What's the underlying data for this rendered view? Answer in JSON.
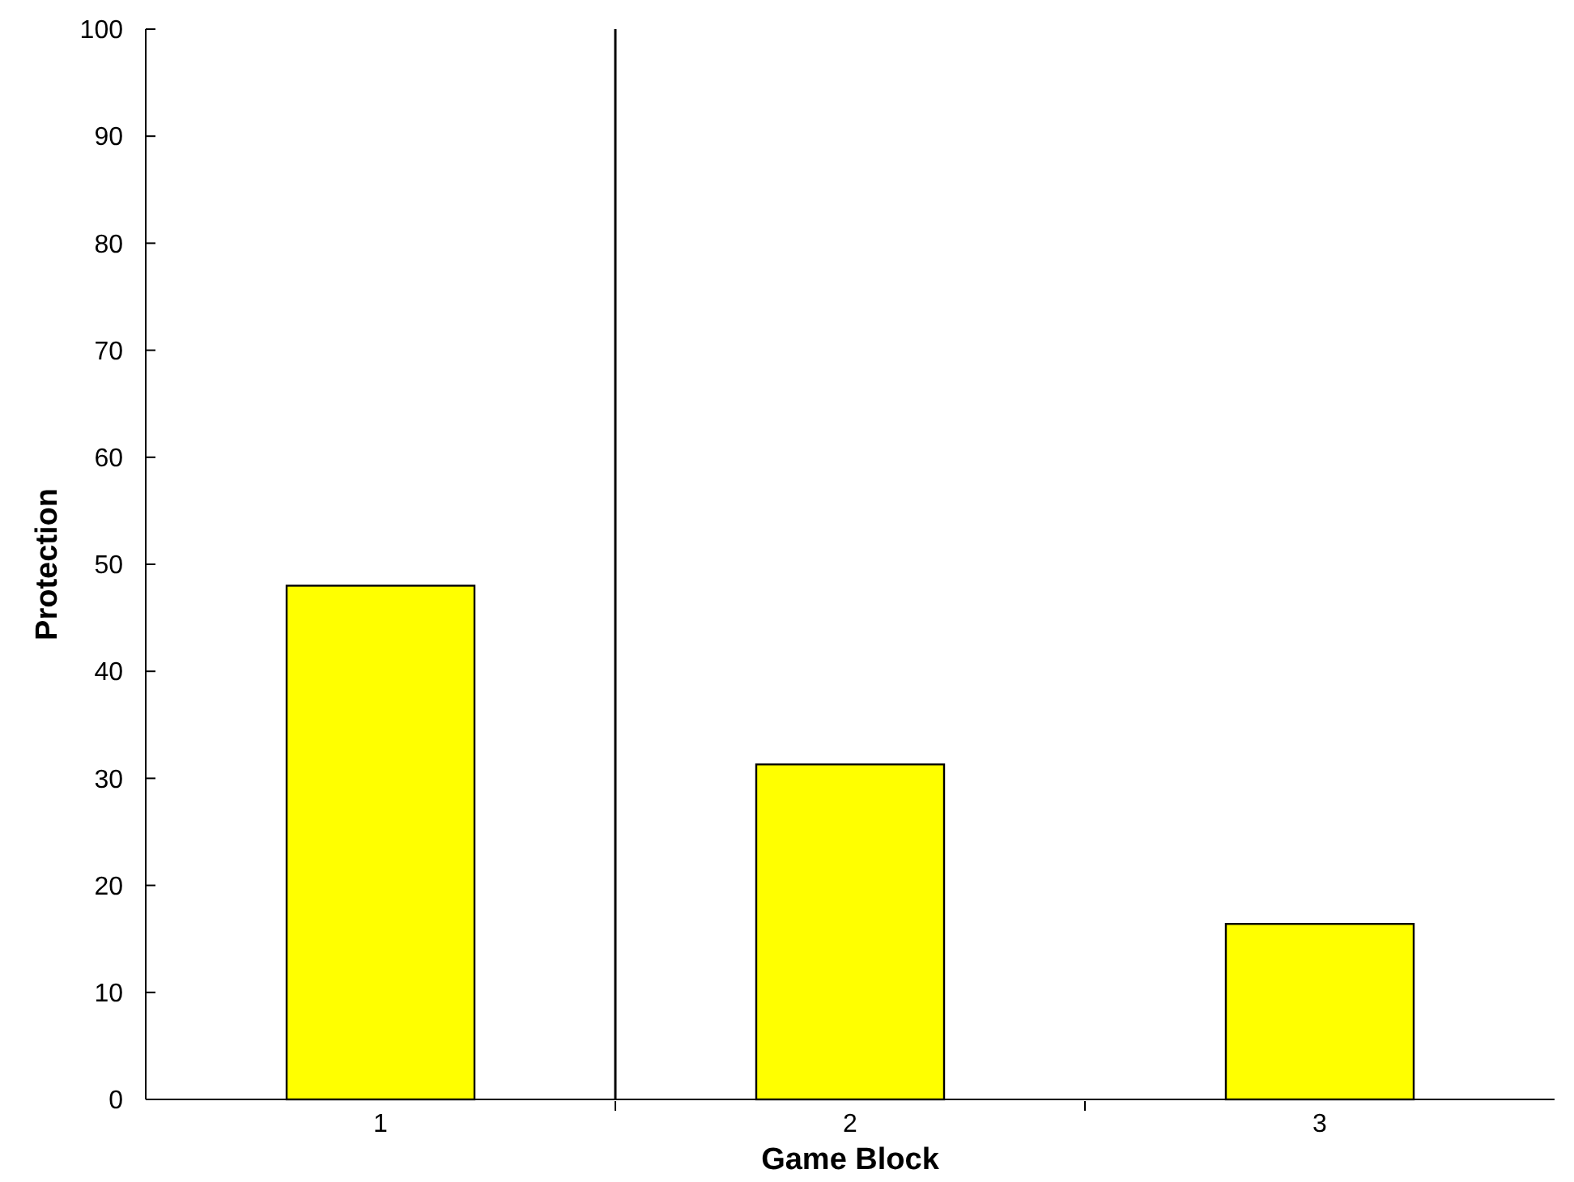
{
  "chart_data": {
    "type": "bar",
    "xlabel": "Game Block",
    "ylabel": "Protection",
    "x": [
      1,
      2,
      3
    ],
    "values": [
      48,
      31.3,
      16.4
    ],
    "color": "#ffff00",
    "xlim": [
      0.5,
      3.5
    ],
    "xticks": [
      1,
      {
        "value": 1.5,
        "label": null
      },
      2,
      {
        "value": 2.5,
        "label": null
      },
      3
    ],
    "ylim": [
      0,
      100
    ],
    "yticks": [
      0,
      10,
      20,
      30,
      40,
      50,
      60,
      70,
      80,
      90,
      100
    ],
    "ref_lines": [
      {
        "axis": "x",
        "value": 1.5,
        "color": "#000000"
      }
    ],
    "grid": false
  }
}
